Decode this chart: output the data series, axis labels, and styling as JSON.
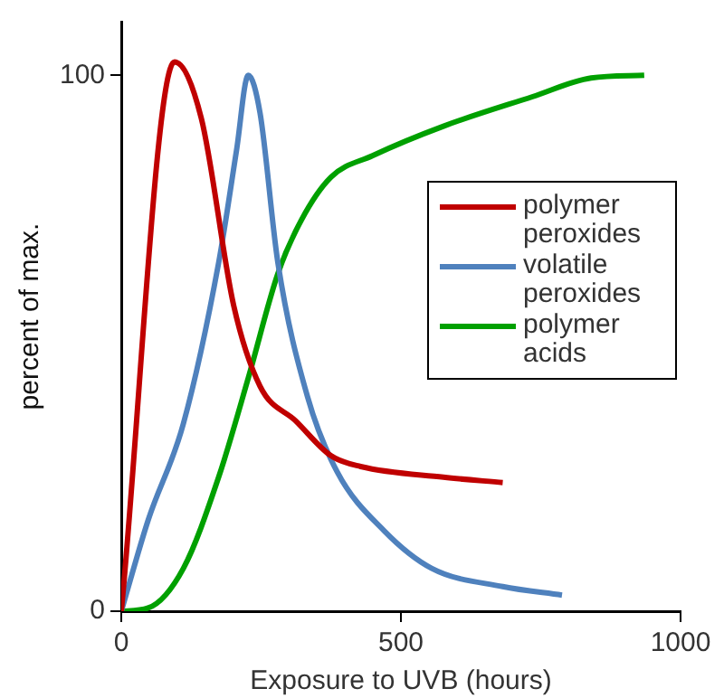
{
  "chart_data": {
    "type": "line",
    "xlabel": "Exposure to UVB (hours)",
    "ylabel": "percent of max.",
    "xlim": [
      0,
      1000
    ],
    "xticks": [
      0,
      500,
      1000
    ],
    "ylim": [
      0,
      110
    ],
    "yticks": [
      0,
      100
    ],
    "grid": false,
    "legend": "right",
    "marker": "none",
    "line_style": "solid",
    "series": [
      {
        "name": "polymer peroxides",
        "color": "#c00000",
        "x": [
          0,
          95,
          143,
          201,
          248,
          312,
          375,
          428,
          576,
          682
        ],
        "values": [
          0,
          102.5,
          92,
          57,
          42,
          35.5,
          29,
          27,
          25,
          24
        ]
      },
      {
        "name": "volatile peroxides",
        "color": "#4f81bd",
        "x": [
          0,
          48,
          111,
          174,
          206,
          227,
          248,
          280,
          333,
          386,
          470,
          555,
          682,
          788
        ],
        "values": [
          0,
          17,
          35,
          65,
          86,
          100,
          93,
          65,
          40,
          26,
          15,
          8,
          4.6,
          3
        ]
      },
      {
        "name": "polymer acids",
        "color": "#00a000",
        "x": [
          0,
          48,
          111,
          174,
          227,
          280,
          322,
          375,
          449,
          576,
          735,
          840,
          935
        ],
        "values": [
          0,
          0.6,
          8,
          25,
          43.5,
          63,
          73,
          81,
          85,
          90.5,
          96,
          99.5,
          100
        ]
      }
    ]
  }
}
